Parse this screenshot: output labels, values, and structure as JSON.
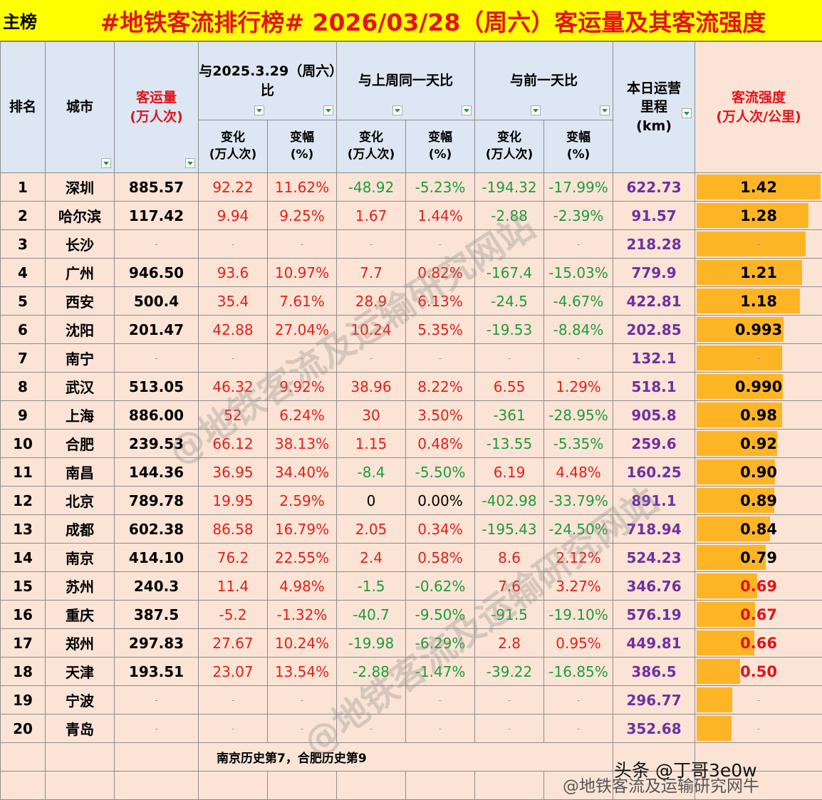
{
  "header": {
    "tag": "主榜",
    "title": "#地铁客流排行榜# 2026/03/28（周六）客运量及其客流强度"
  },
  "table": {
    "columns": [
      "排名",
      "城市",
      "客运量\n(万人次)",
      "变化\n(万人次)",
      "变幅\n(%)",
      "变化\n(万人次)",
      "变幅\n(%)",
      "变化\n(万人次)",
      "变幅\n(%)",
      "本日运营\n里程\n(km)",
      "客流强度\n(万人次/公里)"
    ],
    "groups": [
      "与2025.3.29（周六）比",
      "与上周同一天比",
      "与前一天比"
    ],
    "rows": [
      [
        "1",
        "深圳",
        "885.57",
        "92.22",
        "11.62%",
        "-48.92",
        "-5.23%",
        "-194.32",
        "-17.99%",
        "622.73"
      ],
      [
        "2",
        "哈尔滨",
        "117.42",
        "9.94",
        "9.25%",
        "1.67",
        "1.44%",
        "-2.88",
        "-2.39%",
        "91.57"
      ],
      [
        "3",
        "长沙",
        "-",
        "-",
        "-",
        "-",
        "-",
        "-",
        "-",
        "218.28"
      ],
      [
        "4",
        "广州",
        "946.50",
        "93.6",
        "10.97%",
        "7.7",
        "0.82%",
        "-167.4",
        "-15.03%",
        "779.9"
      ],
      [
        "5",
        "西安",
        "500.4",
        "35.4",
        "7.61%",
        "28.9",
        "6.13%",
        "-24.5",
        "-4.67%",
        "422.81"
      ],
      [
        "6",
        "沈阳",
        "201.47",
        "42.88",
        "27.04%",
        "10.24",
        "5.35%",
        "-19.53",
        "-8.84%",
        "202.85"
      ],
      [
        "7",
        "南宁",
        "-",
        "-",
        "-",
        "-",
        "-",
        "-",
        "-",
        "132.1"
      ],
      [
        "8",
        "武汉",
        "513.05",
        "46.32",
        "9.92%",
        "38.96",
        "8.22%",
        "6.55",
        "1.29%",
        "518.1"
      ],
      [
        "9",
        "上海",
        "886.00",
        "52",
        "6.24%",
        "30",
        "3.50%",
        "-361",
        "-28.95%",
        "905.8"
      ],
      [
        "10",
        "合肥",
        "239.53",
        "66.12",
        "38.13%",
        "1.15",
        "0.48%",
        "-13.55",
        "-5.35%",
        "259.6"
      ],
      [
        "11",
        "南昌",
        "144.36",
        "36.95",
        "34.40%",
        "-8.4",
        "-5.50%",
        "6.19",
        "4.48%",
        "160.25"
      ],
      [
        "12",
        "北京",
        "789.78",
        "19.95",
        "2.59%",
        "0",
        "0.00%",
        "-402.98",
        "-33.79%",
        "891.1"
      ],
      [
        "13",
        "成都",
        "602.38",
        "86.58",
        "16.79%",
        "2.05",
        "0.34%",
        "-195.43",
        "-24.50%",
        "718.94"
      ],
      [
        "14",
        "南京",
        "414.10",
        "76.2",
        "22.55%",
        "2.4",
        "0.58%",
        "8.6",
        "2.12%",
        "524.23"
      ],
      [
        "15",
        "苏州",
        "240.3",
        "11.4",
        "4.98%",
        "-1.5",
        "-0.62%",
        "7.6",
        "3.27%",
        "346.76"
      ],
      [
        "16",
        "重庆",
        "387.5",
        "-5.2",
        "-1.32%",
        "-40.7",
        "-9.50%",
        "-91.5",
        "-19.10%",
        "576.19"
      ],
      [
        "17",
        "郑州",
        "297.83",
        "27.67",
        "10.24%",
        "-19.98",
        "-6.29%",
        "2.8",
        "0.95%",
        "449.81"
      ],
      [
        "18",
        "天津",
        "193.51",
        "23.07",
        "13.54%",
        "-2.88",
        "-1.47%",
        "-39.22",
        "-16.85%",
        "386.5"
      ],
      [
        "19",
        "宁波",
        "-",
        "-",
        "-",
        "-",
        "-",
        "-",
        "-",
        "296.77"
      ],
      [
        "20",
        "青岛",
        "-",
        "-",
        "-",
        "-",
        "-",
        "-",
        "-",
        "352.68"
      ]
    ],
    "intensity": {
      "values": [
        1.42,
        1.28,
        1.25,
        1.21,
        1.18,
        0.993,
        0.98,
        0.99,
        0.98,
        0.92,
        0.9,
        0.89,
        0.84,
        0.79,
        0.69,
        0.67,
        0.66,
        0.5,
        0.41,
        0.4
      ],
      "labels": [
        "1.42",
        "1.28",
        "-",
        "1.21",
        "1.18",
        "0.993",
        "-",
        "0.990",
        "0.98",
        "0.92",
        "0.90",
        "0.89",
        "0.84",
        "0.79",
        "0.69",
        "0.67",
        "0.66",
        "0.50",
        "-",
        "-"
      ],
      "colors": [
        "#000000",
        "#000000",
        "#999999",
        "#000000",
        "#000000",
        "#000000",
        "#999999",
        "#000000",
        "#000000",
        "#000000",
        "#000000",
        "#000000",
        "#000000",
        "#000000",
        "#e0141c",
        "#e0141c",
        "#e0141c",
        "#e0141c",
        "#999999",
        "#999999"
      ]
    },
    "note": "南京历史第7，合肥历史第9"
  },
  "watermarks": {
    "diagonal": "@地铁客流及运输研究网站",
    "toutiao": "头条 @丁哥3e0w",
    "weibo": "@地铁客流及运输研究网牛"
  }
}
